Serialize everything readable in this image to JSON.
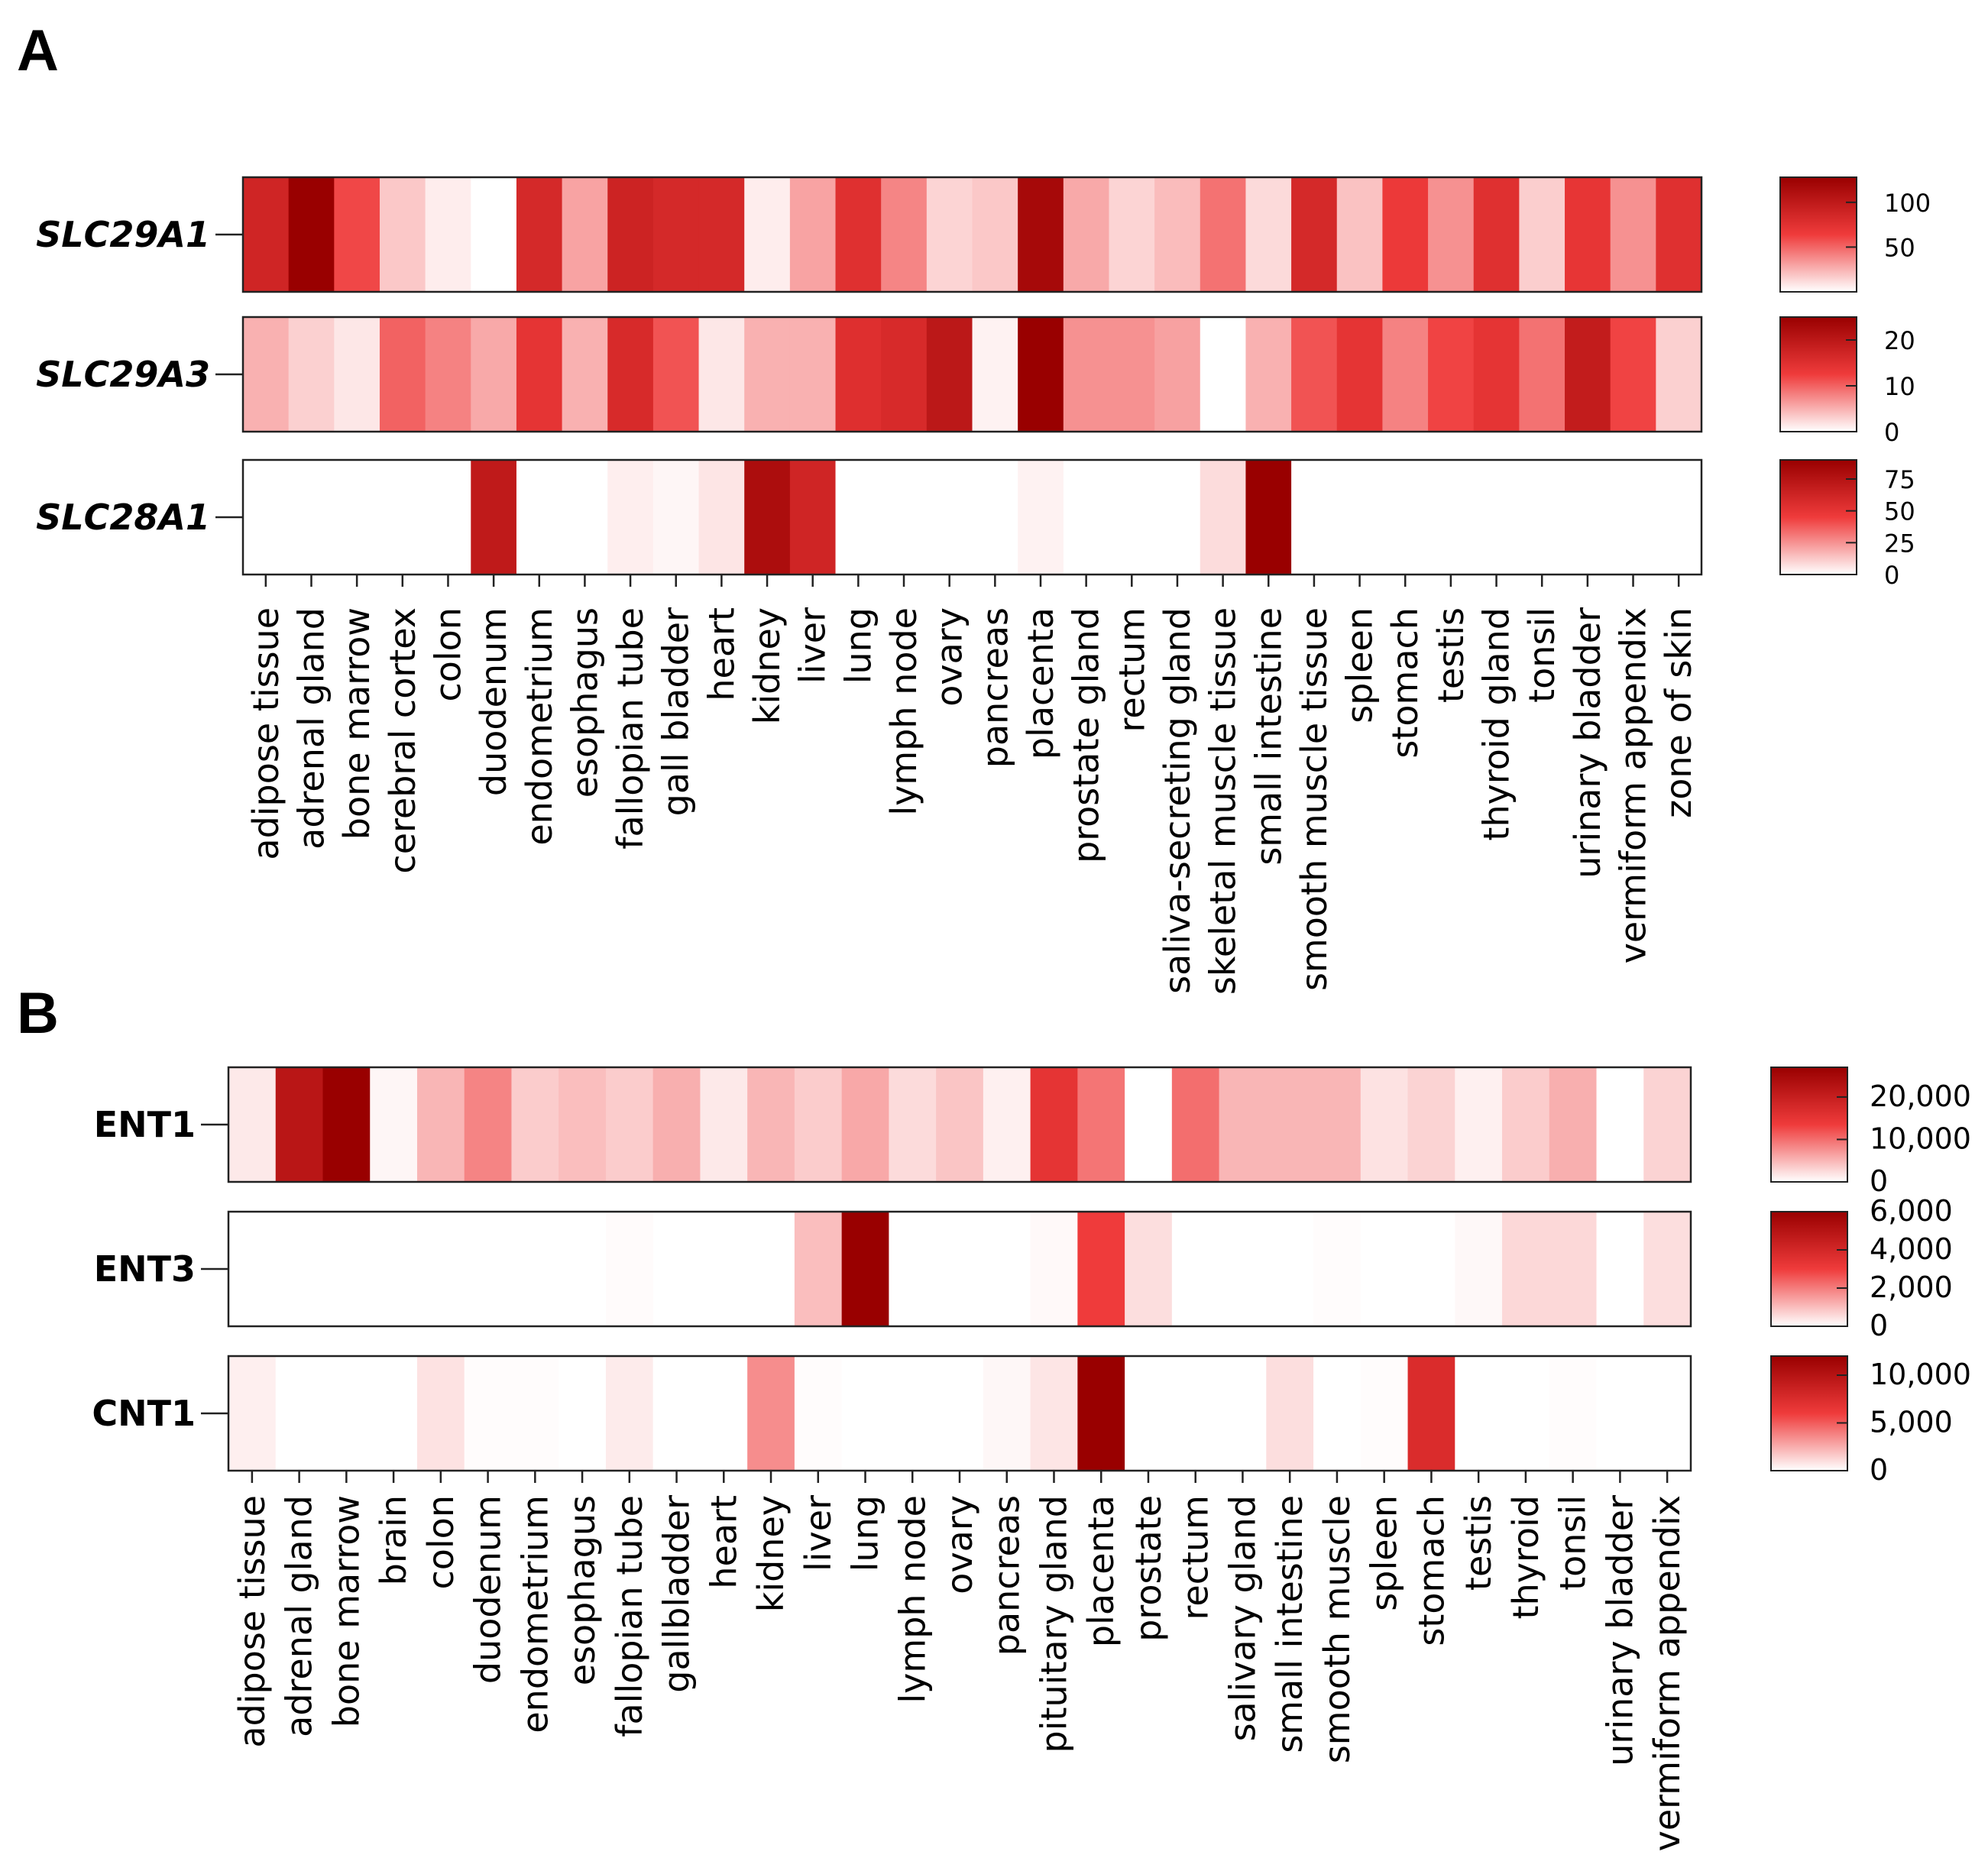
{
  "chart_data": [
    {
      "type": "heatmap",
      "panel": "A",
      "colormap": [
        "#ffffff",
        "#ef3b3b",
        "#990000"
      ],
      "categories": [
        "adipose tissue",
        "adrenal gland",
        "bone marrow",
        "cerebral cortex",
        "colon",
        "duodenum",
        "endometrium",
        "esophagus",
        "fallopian tube",
        "gall bladder",
        "heart",
        "kidney",
        "liver",
        "lung",
        "lymph node",
        "ovary",
        "pancreas",
        "placenta",
        "prostate gland",
        "rectum",
        "saliva-secreting gland",
        "skeletal muscle tissue",
        "small intestine",
        "smooth muscle tissue",
        "spleen",
        "stomach",
        "testis",
        "thyroid gland",
        "tonsil",
        "urinary bladder",
        "vermiform appendix",
        "zone of skin"
      ],
      "rows": [
        {
          "name": "SLC29A1",
          "values": [
            88,
            128,
            60,
            18,
            6,
            0,
            84,
            30,
            90,
            84,
            84,
            6,
            30,
            76,
            40,
            14,
            18,
            118,
            28,
            14,
            22,
            46,
            12,
            84,
            20,
            66,
            36,
            76,
            16,
            70,
            36,
            76
          ],
          "range": [
            0,
            128
          ],
          "colorbar": {
            "ticks": [
              {
                "value": 100,
                "label": "100"
              },
              {
                "value": 50,
                "label": "50"
              }
            ]
          }
        },
        {
          "name": "SLC29A3",
          "values": [
            5,
            3,
            1.5,
            10,
            8,
            5.5,
            14,
            5,
            16,
            11,
            1.5,
            5,
            5,
            15,
            16,
            20,
            0.8,
            25,
            7,
            7,
            6,
            0,
            5,
            11,
            14,
            8,
            12,
            14,
            9,
            19,
            12,
            3
          ],
          "range": [
            0,
            25
          ],
          "colorbar": {
            "ticks": [
              {
                "value": 20,
                "label": "20"
              },
              {
                "value": 10,
                "label": "10"
              },
              {
                "value": 0,
                "label": "0"
              }
            ]
          }
        },
        {
          "name": "SLC28A1",
          "values": [
            0,
            0,
            0,
            0,
            0,
            70,
            0,
            0,
            4,
            2,
            6,
            80,
            62,
            0,
            0,
            0,
            0,
            3,
            0,
            0,
            0,
            8,
            90,
            0,
            0,
            0,
            0,
            0,
            0,
            0,
            0,
            0
          ],
          "range": [
            0,
            90
          ],
          "colorbar": {
            "ticks": [
              {
                "value": 75,
                "label": "75"
              },
              {
                "value": 50,
                "label": "50"
              },
              {
                "value": 25,
                "label": "25"
              },
              {
                "value": 0,
                "label": "0"
              }
            ]
          }
        }
      ]
    },
    {
      "type": "heatmap",
      "panel": "B",
      "colormap": [
        "#ffffff",
        "#ef3b3b",
        "#990000"
      ],
      "categories": [
        "adipose tissue",
        "adrenal gland",
        "bone marrow",
        "brain",
        "colon",
        "duodenum",
        "endometrium",
        "esophagus",
        "fallopian tube",
        "gallbladder",
        "heart",
        "kidney",
        "liver",
        "lung",
        "lymph node",
        "ovary",
        "pancreas",
        "pituitary gland",
        "placenta",
        "prostate",
        "rectum",
        "salivary gland",
        "small intestine",
        "smooth muscle",
        "spleen",
        "stomach",
        "testis",
        "thyroid",
        "tonsil",
        "urinary bladder",
        "vermiform appendix"
      ],
      "rows": [
        {
          "name": "ENT1",
          "values": [
            1500,
            22000,
            27000,
            600,
            5000,
            8500,
            3500,
            4500,
            3500,
            5500,
            1500,
            5000,
            3500,
            6000,
            2500,
            4000,
            1000,
            15000,
            9500,
            0,
            10000,
            5000,
            5000,
            5000,
            2000,
            3000,
            1000,
            3500,
            5500,
            0,
            3000
          ],
          "range": [
            0,
            27000
          ],
          "colorbar": {
            "ticks": [
              {
                "value": 20000,
                "label": "20,000"
              },
              {
                "value": 10000,
                "label": "10,000"
              },
              {
                "value": 0,
                "label": "0"
              }
            ]
          }
        },
        {
          "name": "ENT3",
          "values": [
            0,
            0,
            0,
            0,
            0,
            0,
            0,
            0,
            60,
            0,
            0,
            0,
            1000,
            6000,
            0,
            0,
            0,
            90,
            3000,
            500,
            0,
            0,
            0,
            50,
            0,
            0,
            100,
            600,
            600,
            0,
            500
          ],
          "range": [
            0,
            6000
          ],
          "colorbar": {
            "ticks": [
              {
                "value": 6000,
                "label": "6,000"
              },
              {
                "value": 4000,
                "label": "4,000"
              },
              {
                "value": 2000,
                "label": "2,000"
              },
              {
                "value": 0,
                "label": "0"
              }
            ]
          }
        },
        {
          "name": "CNT1",
          "values": [
            500,
            0,
            0,
            0,
            900,
            80,
            80,
            0,
            600,
            0,
            0,
            3500,
            80,
            0,
            0,
            0,
            250,
            800,
            12000,
            0,
            0,
            0,
            1000,
            0,
            100,
            7500,
            0,
            0,
            100,
            0,
            0
          ],
          "range": [
            0,
            12000
          ],
          "colorbar": {
            "ticks": [
              {
                "value": 10000,
                "label": "10,000"
              },
              {
                "value": 5000,
                "label": "5,000"
              },
              {
                "value": 0,
                "label": "0"
              }
            ]
          }
        }
      ]
    }
  ]
}
